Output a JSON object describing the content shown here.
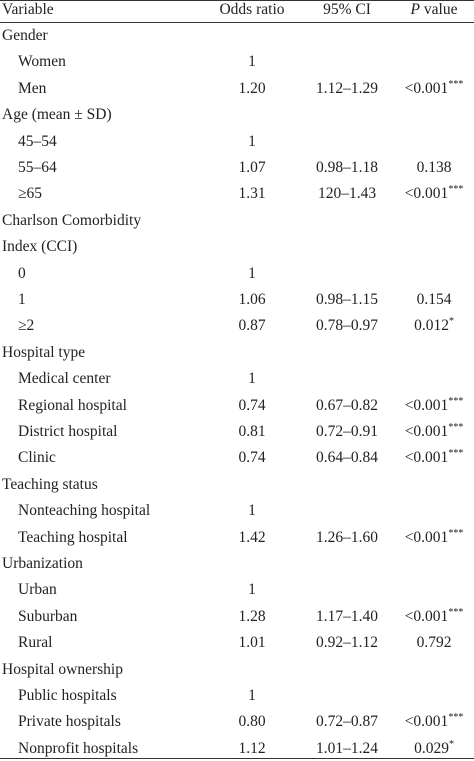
{
  "header": {
    "variable": "Variable",
    "odds_ratio": "Odds ratio",
    "ci": "95% CI",
    "p_letter": "P",
    "p_value": " value"
  },
  "rows": [
    {
      "label": "Gender",
      "indent": false,
      "odds": "",
      "ci": "",
      "p": "",
      "sig": ""
    },
    {
      "label": "Women",
      "indent": true,
      "odds": "1",
      "ci": "",
      "p": "",
      "sig": ""
    },
    {
      "label": "Men",
      "indent": true,
      "odds": "1.20",
      "ci": "1.12–1.29",
      "p": "<0.001",
      "sig": "***"
    },
    {
      "label": "Age (mean ± SD)",
      "indent": false,
      "odds": "",
      "ci": "",
      "p": "",
      "sig": ""
    },
    {
      "label": "45–54",
      "indent": true,
      "odds": "1",
      "ci": "",
      "p": "",
      "sig": ""
    },
    {
      "label": "55–64",
      "indent": true,
      "odds": "1.07",
      "ci": "0.98–1.18",
      "p": "0.138",
      "sig": ""
    },
    {
      "label": "≥65",
      "indent": true,
      "odds": "1.31",
      "ci": "120–1.43",
      "p": "<0.001",
      "sig": "***"
    },
    {
      "label": "Charlson Comorbidity",
      "indent": false,
      "odds": "",
      "ci": "",
      "p": "",
      "sig": ""
    },
    {
      "label": "Index (CCI)",
      "indent": false,
      "odds": "",
      "ci": "",
      "p": "",
      "sig": ""
    },
    {
      "label": "0",
      "indent": true,
      "odds": "1",
      "ci": "",
      "p": "",
      "sig": ""
    },
    {
      "label": "1",
      "indent": true,
      "odds": "1.06",
      "ci": "0.98–1.15",
      "p": "0.154",
      "sig": ""
    },
    {
      "label": "≥2",
      "indent": true,
      "odds": "0.87",
      "ci": "0.78–0.97",
      "p": "0.012",
      "sig": "*"
    },
    {
      "label": "Hospital type",
      "indent": false,
      "odds": "",
      "ci": "",
      "p": "",
      "sig": ""
    },
    {
      "label": "Medical center",
      "indent": true,
      "odds": "1",
      "ci": "",
      "p": "",
      "sig": ""
    },
    {
      "label": "Regional hospital",
      "indent": true,
      "odds": "0.74",
      "ci": "0.67–0.82",
      "p": "<0.001",
      "sig": "***"
    },
    {
      "label": "District hospital",
      "indent": true,
      "odds": "0.81",
      "ci": "0.72–0.91",
      "p": "<0.001",
      "sig": "***"
    },
    {
      "label": "Clinic",
      "indent": true,
      "odds": "0.74",
      "ci": "0.64–0.84",
      "p": "<0.001",
      "sig": "***"
    },
    {
      "label": "Teaching status",
      "indent": false,
      "odds": "",
      "ci": "",
      "p": "",
      "sig": ""
    },
    {
      "label": "Nonteaching hospital",
      "indent": true,
      "odds": "1",
      "ci": "",
      "p": "",
      "sig": ""
    },
    {
      "label": "Teaching hospital",
      "indent": true,
      "odds": "1.42",
      "ci": "1.26–1.60",
      "p": "<0.001",
      "sig": "***"
    },
    {
      "label": "Urbanization",
      "indent": false,
      "odds": "",
      "ci": "",
      "p": "",
      "sig": ""
    },
    {
      "label": "Urban",
      "indent": true,
      "odds": "1",
      "ci": "",
      "p": "",
      "sig": ""
    },
    {
      "label": "Suburban",
      "indent": true,
      "odds": "1.28",
      "ci": "1.17–1.40",
      "p": "<0.001",
      "sig": "***"
    },
    {
      "label": "Rural",
      "indent": true,
      "odds": "1.01",
      "ci": "0.92–1.12",
      "p": "0.792",
      "sig": ""
    },
    {
      "label": "Hospital ownership",
      "indent": false,
      "odds": "",
      "ci": "",
      "p": "",
      "sig": ""
    },
    {
      "label": "Public hospitals",
      "indent": true,
      "odds": "1",
      "ci": "",
      "p": "",
      "sig": ""
    },
    {
      "label": "Private hospitals",
      "indent": true,
      "odds": "0.80",
      "ci": "0.72–0.87",
      "p": "<0.001",
      "sig": "***"
    },
    {
      "label": "Nonprofit hospitals",
      "indent": true,
      "odds": "1.12",
      "ci": "1.01–1.24",
      "p": "0.029",
      "sig": "*"
    }
  ]
}
